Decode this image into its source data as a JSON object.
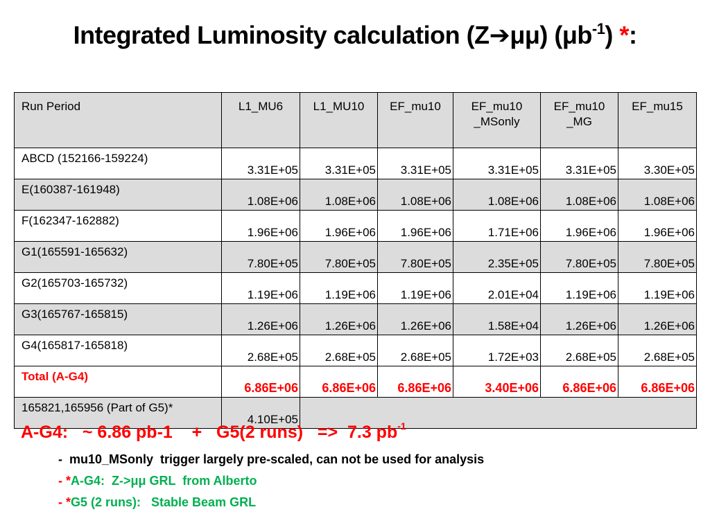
{
  "title": {
    "text_pre": "Integrated Luminosity calculation (Z",
    "arrow": "➔",
    "text_mid": "μμ) (μb",
    "sup": "-1",
    "text_post": ") ",
    "star": "*",
    "colon": ":"
  },
  "table": {
    "headers": [
      "Run Period",
      "L1_MU6",
      "L1_MU10",
      "EF_mu10",
      "EF_mu10\n_MSonly",
      "EF_mu10\n_MG",
      "EF_mu15"
    ],
    "rows": [
      {
        "name": "ABCD (152166-159224)",
        "values": [
          "3.31E+05",
          "3.31E+05",
          "3.31E+05",
          "3.31E+05",
          "3.31E+05",
          "3.30E+05"
        ]
      },
      {
        "name": "E(160387-161948)",
        "values": [
          "1.08E+06",
          "1.08E+06",
          "1.08E+06",
          "1.08E+06",
          "1.08E+06",
          "1.08E+06"
        ]
      },
      {
        "name": "F(162347-162882)",
        "values": [
          "1.96E+06",
          "1.96E+06",
          "1.96E+06",
          "1.71E+06",
          "1.96E+06",
          "1.96E+06"
        ]
      },
      {
        "name": "G1(165591-165632)",
        "values": [
          "7.80E+05",
          "7.80E+05",
          "7.80E+05",
          "2.35E+05",
          "7.80E+05",
          "7.80E+05"
        ]
      },
      {
        "name": "G2(165703-165732)",
        "values": [
          "1.19E+06",
          "1.19E+06",
          "1.19E+06",
          "2.01E+04",
          "1.19E+06",
          "1.19E+06"
        ]
      },
      {
        "name": "G3(165767-165815)",
        "values": [
          "1.26E+06",
          "1.26E+06",
          "1.26E+06",
          "1.58E+04",
          "1.26E+06",
          "1.26E+06"
        ]
      },
      {
        "name": "G4(165817-165818)",
        "values": [
          "2.68E+05",
          "2.68E+05",
          "2.68E+05",
          "1.72E+03",
          "2.68E+05",
          "2.68E+05"
        ]
      }
    ],
    "total": {
      "name": "Total (A-G4)",
      "values": [
        "6.86E+06",
        "6.86E+06",
        "6.86E+06",
        "3.40E+06",
        "6.86E+06",
        "6.86E+06"
      ]
    },
    "g5": {
      "name": "165821,165956 (Part of G5)*",
      "value": "4.10E+05"
    }
  },
  "summary": {
    "text": "A-G4:   ~ 6.86 pb-1    +   G5(2 runs)   =>  7.3 pb",
    "sup": "-1"
  },
  "notes": {
    "note1": "-  mu10_MSonly  trigger largely pre-scaled, can not be used for analysis",
    "note2_dash": "- ",
    "note2_star": "*",
    "note2_text": "A-G4:  Z->μμ GRL  from Alberto",
    "note3_dash": "- ",
    "note3_star": "*",
    "note3_text": "G5 (2 runs):   Stable Beam GRL"
  },
  "colors": {
    "accent_red": "#ff0000",
    "note_green": "#00b050",
    "row_gray": "#dcdcdc"
  }
}
